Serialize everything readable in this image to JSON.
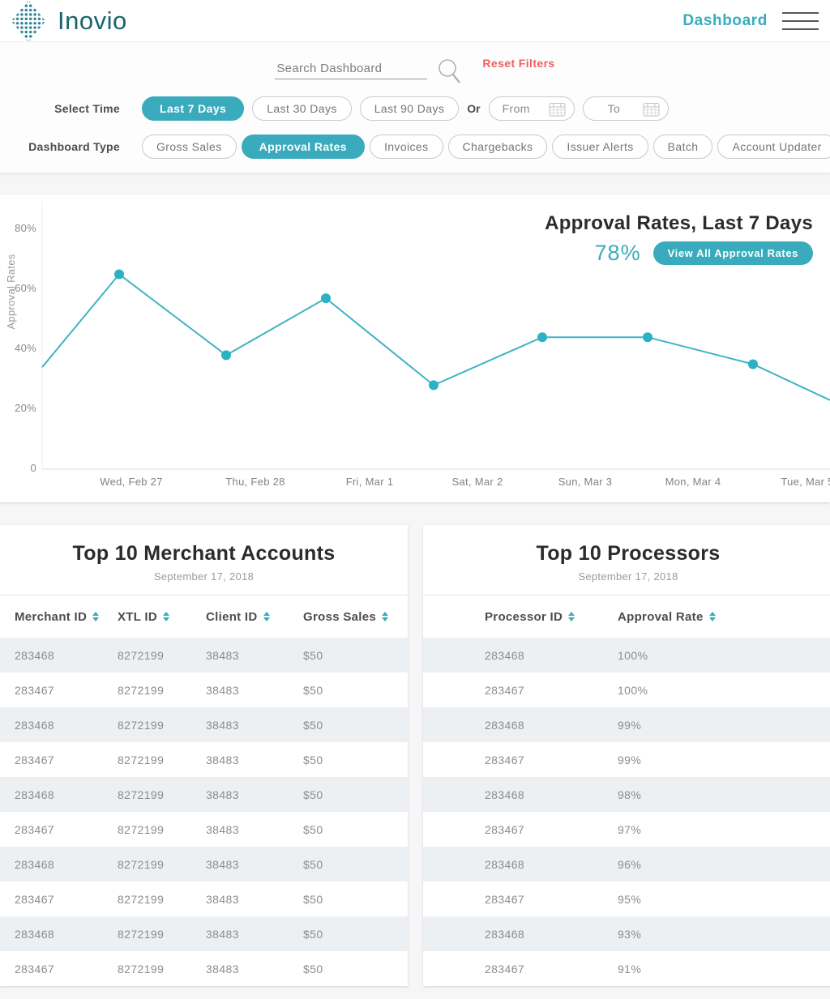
{
  "colors": {
    "accent": "#3aabbd",
    "brand_text": "#19646f",
    "reset_red": "#ee5f61",
    "line": "#41b3c4",
    "dot": "#2cb1c5"
  },
  "header": {
    "brand": "Inovio",
    "page_title": "Dashboard"
  },
  "filters": {
    "search_placeholder": "Search Dashboard",
    "reset_label": "Reset Filters",
    "select_time": {
      "label": "Select Time",
      "options": [
        {
          "label": "Last 7 Days",
          "active": true
        },
        {
          "label": "Last 30 Days",
          "active": false
        },
        {
          "label": "Last 90 Days",
          "active": false
        }
      ],
      "or_label": "Or",
      "from_label": "From",
      "to_label": "To"
    },
    "dashboard_type": {
      "label": "Dashboard Type",
      "options": [
        {
          "label": "Gross Sales",
          "active": false
        },
        {
          "label": "Approval Rates",
          "active": true
        },
        {
          "label": "Invoices",
          "active": false
        },
        {
          "label": "Chargebacks",
          "active": false
        },
        {
          "label": "Issuer Alerts",
          "active": false
        },
        {
          "label": "Batch",
          "active": false
        },
        {
          "label": "Account Updater",
          "active": false
        }
      ]
    }
  },
  "chart": {
    "big_value": "78%",
    "view_all_label": "View All Approval Rates"
  },
  "chart_data": {
    "type": "line",
    "title": "Approval Rates, Last 7 Days",
    "ylabel": "Approval Rates",
    "ylim": [
      0,
      89
    ],
    "grid": false,
    "yticks": [
      {
        "label": "80%",
        "value": 80
      },
      {
        "label": "60%",
        "value": 60
      },
      {
        "label": "40%",
        "value": 40
      },
      {
        "label": "20%",
        "value": 20
      },
      {
        "label": "0",
        "value": 0
      }
    ],
    "categories": [
      "Wed, Feb 27",
      "Thu, Feb 28",
      "Fri, Mar 1",
      "Sat, Mar 2",
      "Sun, Mar 3",
      "Mon, Mar 4",
      "Tue, Mar 5"
    ],
    "values": [
      65,
      38,
      57,
      28,
      44,
      44,
      35
    ],
    "edge_left_value": 34,
    "edge_right_value": 23
  },
  "tables": [
    {
      "title": "Top 10 Merchant Accounts",
      "subtitle": "September 17, 2018",
      "columns": [
        "Merchant ID",
        "XTL ID",
        "Client ID",
        "Gross Sales"
      ],
      "rows": [
        [
          "283468",
          "8272199",
          "38483",
          "$50"
        ],
        [
          "283467",
          "8272199",
          "38483",
          "$50"
        ],
        [
          "283468",
          "8272199",
          "38483",
          "$50"
        ],
        [
          "283467",
          "8272199",
          "38483",
          "$50"
        ],
        [
          "283468",
          "8272199",
          "38483",
          "$50"
        ],
        [
          "283467",
          "8272199",
          "38483",
          "$50"
        ],
        [
          "283468",
          "8272199",
          "38483",
          "$50"
        ],
        [
          "283467",
          "8272199",
          "38483",
          "$50"
        ],
        [
          "283468",
          "8272199",
          "38483",
          "$50"
        ],
        [
          "283467",
          "8272199",
          "38483",
          "$50"
        ]
      ]
    },
    {
      "title": "Top 10 Processors",
      "subtitle": "September 17, 2018",
      "columns": [
        "Processor ID",
        "Approval Rate"
      ],
      "rows": [
        [
          "283468",
          "100%"
        ],
        [
          "283467",
          "100%"
        ],
        [
          "283468",
          "99%"
        ],
        [
          "283467",
          "99%"
        ],
        [
          "283468",
          "98%"
        ],
        [
          "283467",
          "97%"
        ],
        [
          "283468",
          "96%"
        ],
        [
          "283467",
          "95%"
        ],
        [
          "283468",
          "93%"
        ],
        [
          "283467",
          "91%"
        ]
      ]
    }
  ]
}
